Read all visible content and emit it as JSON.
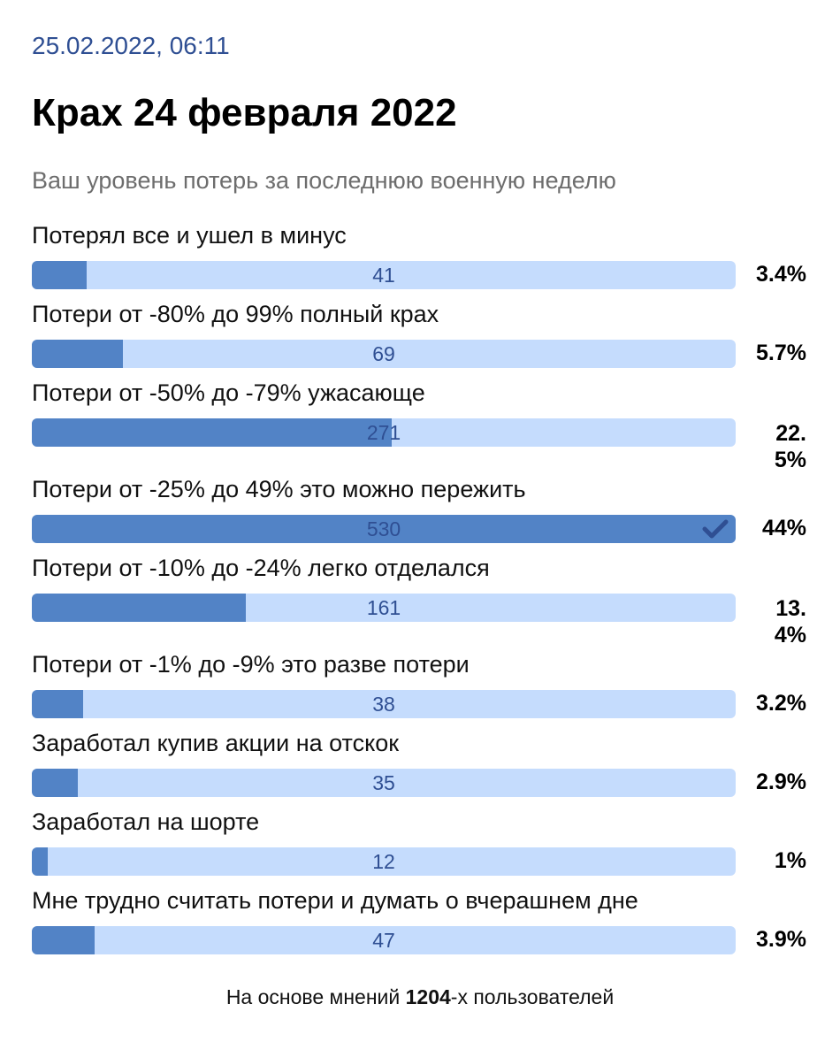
{
  "header": {
    "date": "25.02.2022, 06:11",
    "title": "Крах 24 февраля 2022",
    "question": "Ваш уровень потерь за последнюю военную неделю"
  },
  "poll": {
    "options": [
      {
        "label": "Потерял все и ушел в минус",
        "votes": "41",
        "percent": "3.4%",
        "share": 3.4,
        "selected": false
      },
      {
        "label": "Потери от -80% до 99% полный крах",
        "votes": "69",
        "percent": "5.7%",
        "share": 5.7,
        "selected": false
      },
      {
        "label": "Потери от -50% до -79% ужасающе",
        "votes": "271",
        "percent": "22.5%",
        "share": 22.5,
        "selected": false
      },
      {
        "label": "Потери от -25% до 49% это можно пережить",
        "votes": "530",
        "percent": "44%",
        "share": 44,
        "selected": true
      },
      {
        "label": "Потери от -10% до -24% легко отделался",
        "votes": "161",
        "percent": "13.4%",
        "share": 13.4,
        "selected": false
      },
      {
        "label": "Потери от -1% до -9% это разве потери",
        "votes": "38",
        "percent": "3.2%",
        "share": 3.2,
        "selected": false
      },
      {
        "label": "Заработал купив акции на отскок",
        "votes": "35",
        "percent": "2.9%",
        "share": 2.9,
        "selected": false
      },
      {
        "label": "Заработал на шорте",
        "votes": "12",
        "percent": "1%",
        "share": 1,
        "selected": false
      },
      {
        "label": "Мне трудно считать потери и думать о вчерашнем дне",
        "votes": "47",
        "percent": "3.9%",
        "share": 3.9,
        "selected": false
      }
    ],
    "selected_icon": "checkmark-icon"
  },
  "footer": {
    "prefix": "На основе мнений ",
    "count": "1204",
    "suffix": "-х пользователей"
  },
  "colors": {
    "bar_track": "#c5dcfd",
    "bar_fill": "#5283c6",
    "accent": "#2f4f93"
  }
}
